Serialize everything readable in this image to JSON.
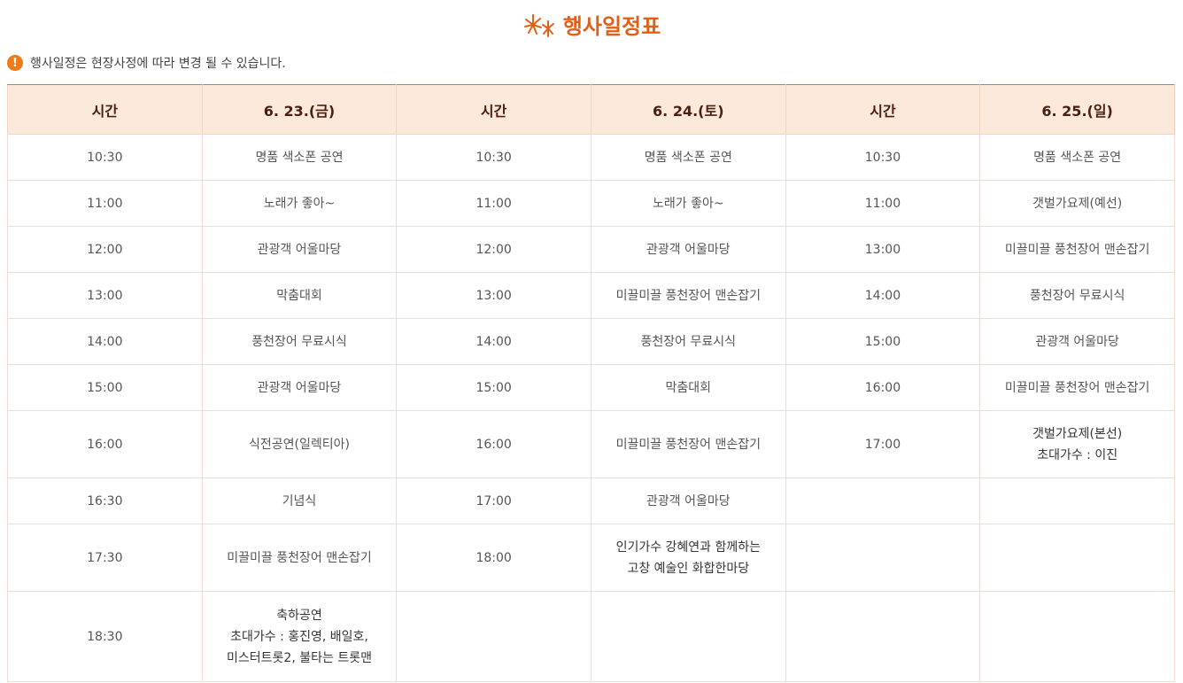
{
  "title": "행사일정표",
  "notice": "행사일정은 현장사정에 따라 변경 될 수 있습니다.",
  "colors": {
    "accent": "#e0601a",
    "header_bg": "#fde8dc"
  },
  "headers": [
    "시간",
    "6. 23.(금)",
    "시간",
    "6. 24.(토)",
    "시간",
    "6. 25.(일)"
  ],
  "rows": [
    [
      "10:30",
      "명품 색소폰 공연",
      "10:30",
      "명품 색소폰 공연",
      "10:30",
      "명품 색소폰 공연"
    ],
    [
      "11:00",
      "노래가 좋아~",
      "11:00",
      "노래가 좋아~",
      "11:00",
      "갯벌가요제(예선)"
    ],
    [
      "12:00",
      "관광객 어울마당",
      "12:00",
      "관광객 어울마당",
      "13:00",
      "미끌미끌 풍천장어 맨손잡기"
    ],
    [
      "13:00",
      "막춤대회",
      "13:00",
      "미끌미끌 풍천장어 맨손잡기",
      "14:00",
      "풍천장어 무료시식"
    ],
    [
      "14:00",
      "풍천장어 무료시식",
      "14:00",
      "풍천장어 무료시식",
      "15:00",
      "관광객 어울마당"
    ],
    [
      "15:00",
      "관광객 어울마당",
      "15:00",
      "막춤대회",
      "16:00",
      "미끌미끌 풍천장어 맨손잡기"
    ],
    [
      "16:00",
      "식전공연(일렉티아)",
      "16:00",
      "미끌미끌 풍천장어 맨손잡기",
      "17:00",
      "갯벌가요제(본선)\n초대가수 : 이진"
    ],
    [
      "16:30",
      "기념식",
      "17:00",
      "관광객 어울마당",
      "",
      ""
    ],
    [
      "17:30",
      "미끌미끌 풍천장어 맨손잡기",
      "18:00",
      "인기가수 강혜연과 함께하는\n고창 예술인 화합한마당",
      "",
      ""
    ],
    [
      "18:30",
      "축하공연\n초대가수 : 홍진영, 배일호,\n미스터트롯2, 불타는 트롯맨",
      "",
      "",
      "",
      ""
    ]
  ]
}
